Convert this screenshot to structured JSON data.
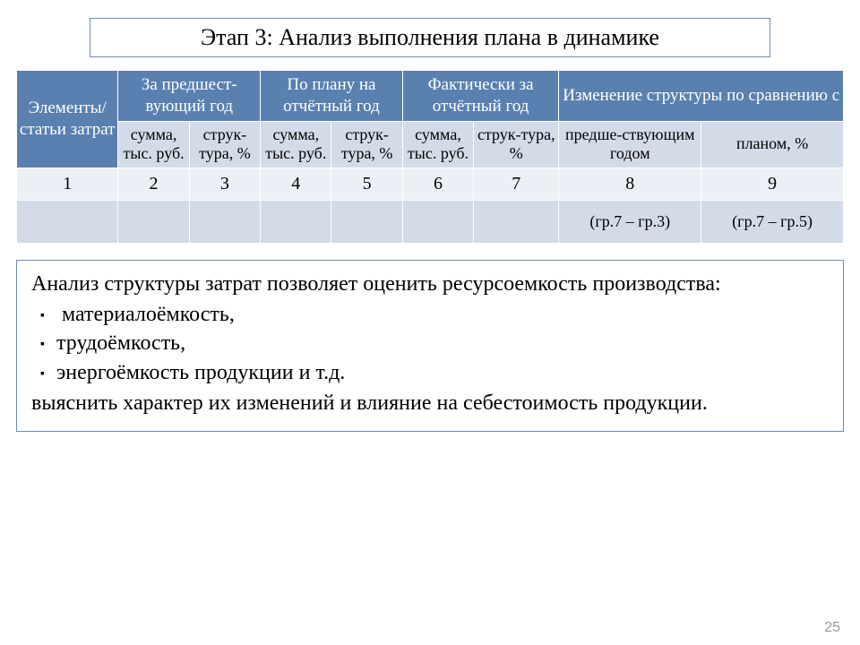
{
  "title": "Этап 3: Анализ выполнения плана в динамике",
  "table": {
    "row_header": "Элементы/ статьи затрат",
    "groups": {
      "g1": "За предшест-вующий год",
      "g2": "По плану на отчётный год",
      "g3": "Фактически за отчётный год",
      "g4": "Изменение структуры по сравнению с"
    },
    "sub": {
      "sum": "сумма, тыс. руб.",
      "struct": "струк-тура, %",
      "prev": "предше-ствующим годом",
      "plan": "планом, %"
    },
    "nums": {
      "n1": "1",
      "n2": "2",
      "n3": "3",
      "n4": "4",
      "n5": "5",
      "n6": "6",
      "n7": "7",
      "n8": "8",
      "n9": "9"
    },
    "formulas": {
      "f8": "(гр.7 – гр.3)",
      "f9": "(гр.7 – гр.5)"
    }
  },
  "desc": {
    "lead": "Анализ структуры затрат позволяет оценить ресурсоемкость производства:",
    "items": {
      "i1": " материалоёмкость,",
      "i2": "трудоёмкость,",
      "i3": "энергоёмкость продукции и т.д."
    },
    "tail": "выяснить характер их изменений и влияние на себестоимость продукции."
  },
  "page_number": "25",
  "colors": {
    "header_bg": "#5a80b0",
    "sub_bg": "#d3dbe8",
    "num_bg": "#ecf0f6",
    "border": "#6e8db5"
  }
}
